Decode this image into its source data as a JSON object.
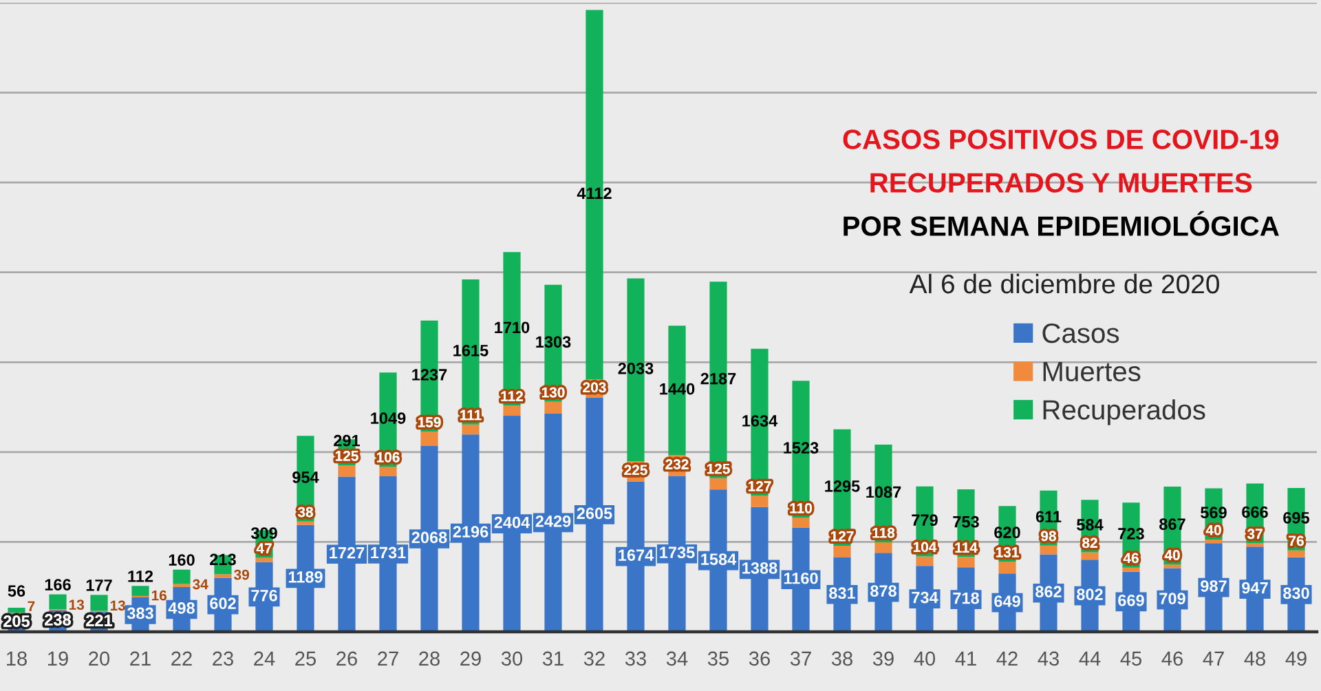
{
  "chart_data": {
    "type": "bar",
    "stacked": true,
    "title": "CASOS POSITIVOS DE COVID-19\nRECUPERADOS Y MUERTES\nPOR SEMANA EPIDEMIOLÓGICA",
    "subtitle": "Al 6 de diciembre de 2020",
    "categories": [
      "18",
      "19",
      "20",
      "21",
      "22",
      "23",
      "24",
      "25",
      "26",
      "27",
      "28",
      "29",
      "30",
      "31",
      "32",
      "33",
      "34",
      "35",
      "36",
      "37",
      "38",
      "39",
      "40",
      "41",
      "42",
      "43",
      "44",
      "45",
      "46",
      "47",
      "48",
      "49"
    ],
    "series": [
      {
        "name": "Casos",
        "color": "#3a75c8",
        "values": [
          205,
          238,
          221,
          383,
          498,
          602,
          776,
          1189,
          1727,
          1731,
          2068,
          2196,
          2404,
          2429,
          2605,
          1674,
          1735,
          1584,
          1388,
          1160,
          831,
          878,
          734,
          718,
          649,
          862,
          802,
          669,
          709,
          987,
          947,
          830
        ]
      },
      {
        "name": "Muertes",
        "color": "#f08a3c",
        "values": [
          7,
          13,
          13,
          16,
          34,
          39,
          47,
          38,
          125,
          106,
          159,
          111,
          112,
          130,
          203,
          225,
          232,
          125,
          127,
          110,
          127,
          118,
          104,
          114,
          131,
          98,
          82,
          46,
          40,
          40,
          37,
          76
        ]
      },
      {
        "name": "Recuperados",
        "color": "#12b25a",
        "values": [
          56,
          166,
          177,
          112,
          160,
          213,
          309,
          954,
          291,
          1049,
          1237,
          1615,
          1710,
          1303,
          4112,
          2033,
          1440,
          2187,
          1634,
          1523,
          1295,
          1087,
          779,
          753,
          620,
          611,
          584,
          723,
          867,
          569,
          666,
          695
        ]
      }
    ],
    "ylim": [
      0,
      7000
    ],
    "yticks": [
      {
        "value": 0,
        "label": null
      },
      {
        "value": 1000,
        "label": null
      },
      {
        "value": 2000,
        "label": null
      },
      {
        "value": 3000,
        "label": null
      },
      {
        "value": 4000,
        "label": null
      },
      {
        "value": 5000,
        "label": null
      },
      {
        "value": 6000,
        "label": null
      },
      {
        "value": 7000,
        "label": null
      }
    ],
    "tick_labels": "x",
    "grid": "y",
    "legend": "right",
    "data_labels": true
  }
}
